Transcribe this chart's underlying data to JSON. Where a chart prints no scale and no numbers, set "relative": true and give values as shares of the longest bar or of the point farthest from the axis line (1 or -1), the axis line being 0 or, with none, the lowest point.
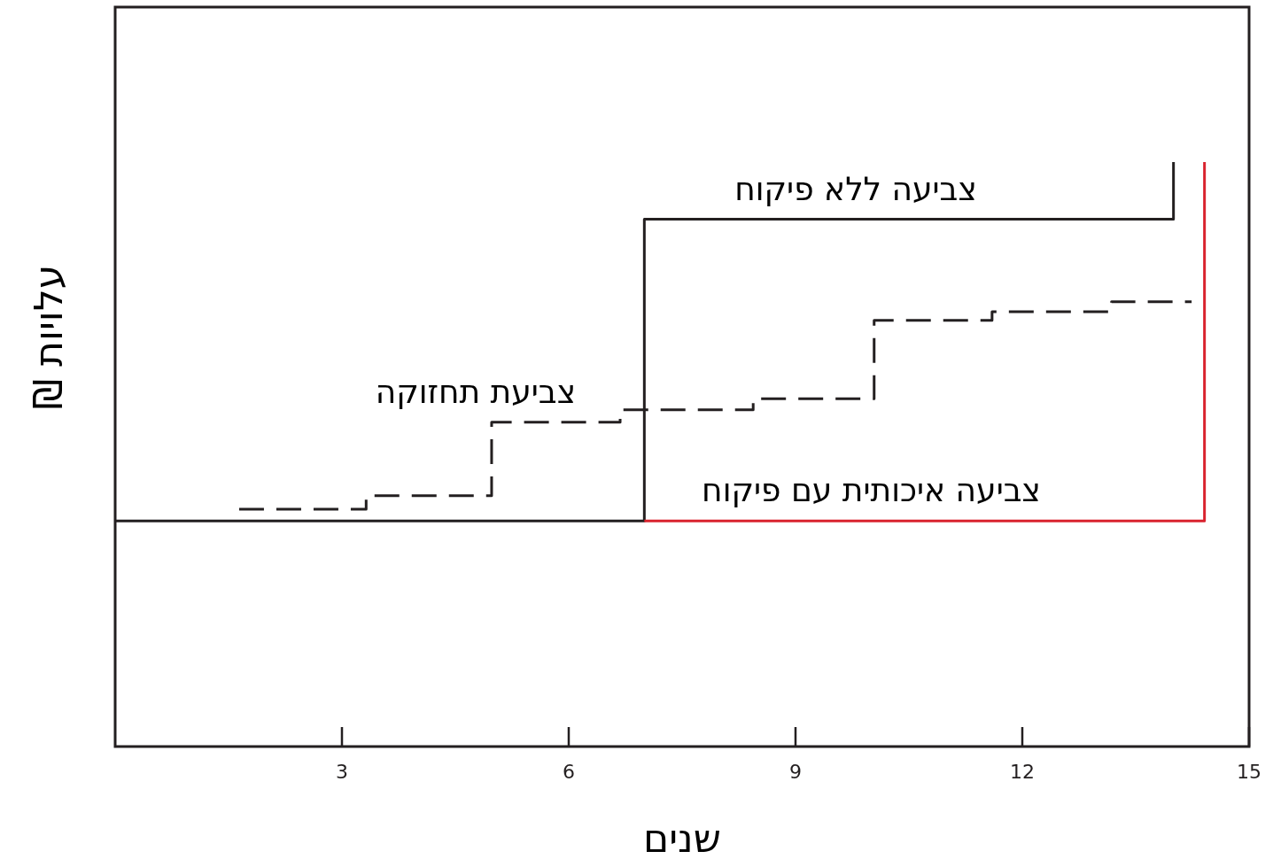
{
  "chart_data": {
    "type": "step",
    "relative": true,
    "xlabel": "שנים",
    "ylabel": "עלויות ₪",
    "xlim": [
      0,
      15
    ],
    "xticks": [
      3,
      6,
      9,
      12,
      15
    ],
    "series": [
      {
        "name": "צביעה ללא פיקוח",
        "color": "#231f20",
        "x": [
          0,
          7,
          14
        ],
        "values": [
          0.386,
          0.902,
          1
        ]
      },
      {
        "name": "צביעת תחזוקה",
        "color": "#231f20",
        "line_style": "dashed",
        "x": [
          1.64,
          3.32,
          4.98,
          6.68,
          8.44,
          10.04,
          11.6,
          13.18,
          14.24
        ],
        "values": [
          0.406,
          0.429,
          0.555,
          0.576,
          0.595,
          0.729,
          0.744,
          0.761,
          0.761
        ]
      },
      {
        "name": "צביעה איכותית עם פיקוח",
        "color": "#d9232e",
        "x": [
          7,
          14.41
        ],
        "values": [
          0.386,
          1
        ]
      }
    ]
  }
}
